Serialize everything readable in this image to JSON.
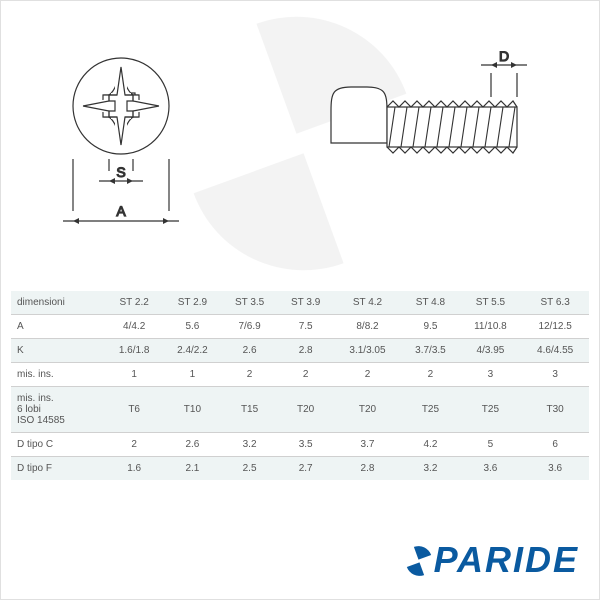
{
  "diagram": {
    "labels": {
      "S": "S",
      "A": "A",
      "D": "D"
    },
    "colors": {
      "stroke": "#333333",
      "fill": "#ffffff",
      "dim_line": "#333333",
      "background": "#ffffff"
    },
    "line_width": 1.2
  },
  "watermark": {
    "fill": "#777777",
    "opacity": 0.08
  },
  "table": {
    "type": "table",
    "header_bg": "#eef4f4",
    "alt_bg": "#eef4f4",
    "border_color": "#d0d0d0",
    "text_color": "#555555",
    "fontsize": 10,
    "columns": [
      "dimensioni",
      "ST 2.2",
      "ST 2.9",
      "ST 3.5",
      "ST 3.9",
      "ST 4.2",
      "ST 4.8",
      "ST 5.5",
      "ST 6.3"
    ],
    "rows": [
      {
        "label": "A",
        "values": [
          "4/4.2",
          "5.6",
          "7/6.9",
          "7.5",
          "8/8.2",
          "9.5",
          "11/10.8",
          "12/12.5"
        ],
        "alt": false
      },
      {
        "label": "K",
        "values": [
          "1.6/1.8",
          "2.4/2.2",
          "2.6",
          "2.8",
          "3.1/3.05",
          "3.7/3.5",
          "4/3.95",
          "4.6/4.55"
        ],
        "alt": true
      },
      {
        "label": "mis. ins.",
        "values": [
          "1",
          "1",
          "2",
          "2",
          "2",
          "2",
          "3",
          "3"
        ],
        "alt": false
      },
      {
        "label": "mis. ins.\n6 lobi\nISO 14585",
        "values": [
          "T6",
          "T10",
          "T15",
          "T20",
          "T20",
          "T25",
          "T25",
          "T30"
        ],
        "alt": true
      },
      {
        "label": "D tipo C",
        "values": [
          "2",
          "2.6",
          "3.2",
          "3.5",
          "3.7",
          "4.2",
          "5",
          "6"
        ],
        "alt": false
      },
      {
        "label": "D tipo F",
        "values": [
          "1.6",
          "2.1",
          "2.5",
          "2.7",
          "2.8",
          "3.2",
          "3.6",
          "3.6"
        ],
        "alt": true
      }
    ]
  },
  "logo": {
    "text_before": "",
    "text_after": "PARIDE",
    "color": "#0a5aa0",
    "fontsize": 36
  }
}
